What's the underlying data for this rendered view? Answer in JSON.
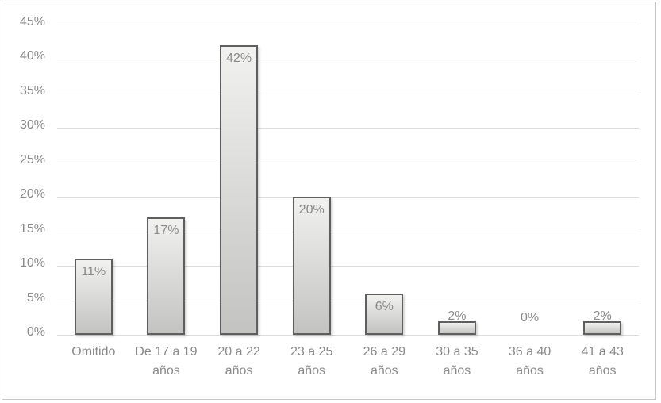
{
  "chart_data": {
    "type": "bar",
    "title": "",
    "xlabel": "",
    "ylabel": "",
    "categories": [
      "Omitido",
      "De 17 a 19\naños",
      "20 a 22\naños",
      "23 a 25\naños",
      "26 a 29\naños",
      "30 a 35\naños",
      "36 a 40\naños",
      "41 a 43\naños"
    ],
    "values": [
      11,
      17,
      42,
      20,
      6,
      2,
      0,
      2
    ],
    "data_labels": [
      "11%",
      "17%",
      "42%",
      "20%",
      "6%",
      "2%",
      "0%",
      "2%"
    ],
    "y_tick_labels": [
      "0%",
      "5%",
      "10%",
      "15%",
      "20%",
      "25%",
      "30%",
      "35%",
      "40%",
      "45%"
    ],
    "ylim": [
      0,
      45
    ],
    "y_step": 5,
    "grid": true,
    "legend_position": "none",
    "colors": {
      "background": "#ffffff",
      "frame_border": "#c9c9c9",
      "gridline": "#dcdcdc",
      "axis_text": "#8a8a8a",
      "data_label_text": "#8a8a8a",
      "bar_fill_top": "#f1f1ef",
      "bar_fill_bottom": "#c3c3c1",
      "bar_border": "#5f5f5f"
    }
  }
}
